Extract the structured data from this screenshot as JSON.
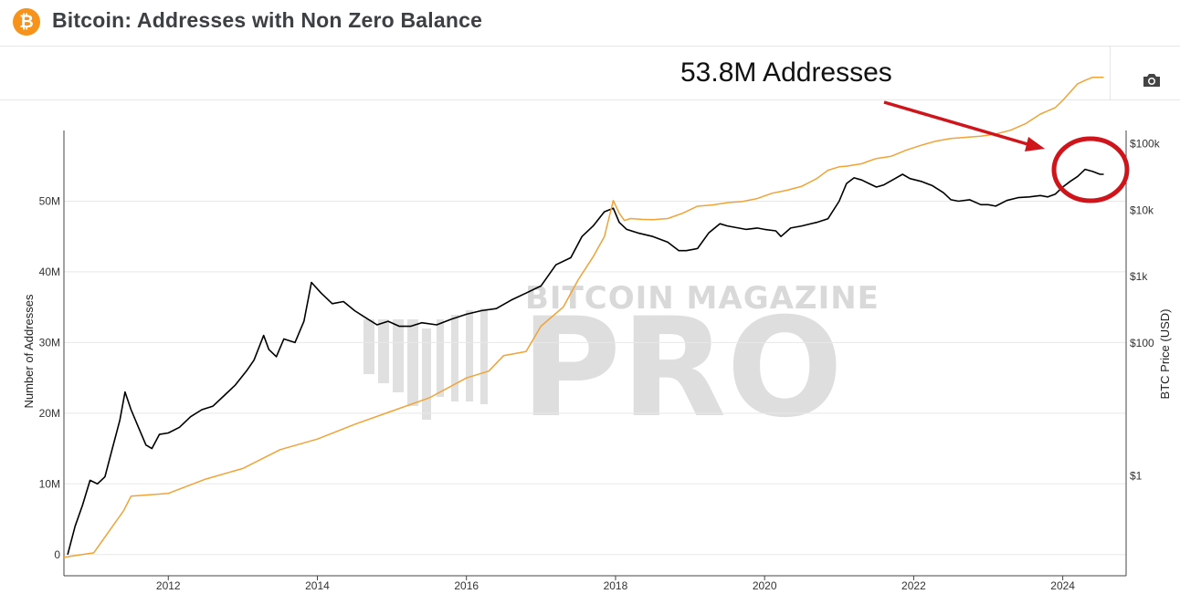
{
  "header": {
    "title": "Bitcoin: Addresses with Non Zero Balance",
    "logo_glyph": "₿",
    "logo_color": "#f7931a"
  },
  "toolbar": {
    "camera_icon": "camera-icon"
  },
  "annotation": {
    "text": "53.8M Addresses",
    "color": "#d0141b"
  },
  "watermark": {
    "line1": "BITCOIN MAGAZINE",
    "line2": "PRO"
  },
  "chart_data": {
    "type": "line",
    "title": "Bitcoin: Addresses with Non Zero Balance",
    "xlabel": "",
    "ylabel": "Number of Addresses",
    "y2label": "BTC Price (USD)",
    "xlim": [
      2010.6,
      2024.85
    ],
    "ylim": [
      -3000000,
      60000000
    ],
    "y2_scale": "log",
    "y2lim_log10": [
      -1.5,
      5.2
    ],
    "grid": true,
    "x_ticks": [
      "2012",
      "2014",
      "2016",
      "2018",
      "2020",
      "2022",
      "2024"
    ],
    "y_ticks": [
      "0",
      "10M",
      "20M",
      "30M",
      "40M",
      "50M"
    ],
    "y2_ticks": [
      "$1",
      "$100",
      "$1k",
      "$10k",
      "$100k"
    ],
    "series": [
      {
        "name": "",
        "color": "#000000",
        "axis": "left",
        "x": [
          2010.65,
          2010.75,
          2010.85,
          2010.95,
          2011.05,
          2011.15,
          2011.25,
          2011.35,
          2011.42,
          2011.5,
          2011.6,
          2011.7,
          2011.78,
          2011.88,
          2012.0,
          2012.15,
          2012.3,
          2012.45,
          2012.6,
          2012.75,
          2012.9,
          2013.05,
          2013.15,
          2013.28,
          2013.35,
          2013.45,
          2013.55,
          2013.7,
          2013.82,
          2013.92,
          2014.05,
          2014.2,
          2014.35,
          2014.5,
          2014.65,
          2014.8,
          2014.95,
          2015.1,
          2015.25,
          2015.4,
          2015.6,
          2015.8,
          2016.0,
          2016.2,
          2016.4,
          2016.6,
          2016.8,
          2017.0,
          2017.2,
          2017.4,
          2017.55,
          2017.7,
          2017.85,
          2017.97,
          2018.05,
          2018.15,
          2018.3,
          2018.5,
          2018.7,
          2018.85,
          2018.95,
          2019.1,
          2019.25,
          2019.4,
          2019.5,
          2019.6,
          2019.75,
          2019.9,
          2020.0,
          2020.15,
          2020.22,
          2020.35,
          2020.5,
          2020.7,
          2020.85,
          2021.0,
          2021.1,
          2021.2,
          2021.3,
          2021.4,
          2021.5,
          2021.6,
          2021.75,
          2021.85,
          2021.95,
          2022.1,
          2022.25,
          2022.4,
          2022.5,
          2022.6,
          2022.75,
          2022.9,
          2023.0,
          2023.1,
          2023.25,
          2023.4,
          2023.55,
          2023.7,
          2023.8,
          2023.9,
          2024.0,
          2024.1,
          2024.2,
          2024.3,
          2024.4,
          2024.5,
          2024.55
        ],
        "y": [
          0,
          4000000,
          7000000,
          10500000,
          10000000,
          11000000,
          15000000,
          19000000,
          23000000,
          20500000,
          18000000,
          15500000,
          15000000,
          17000000,
          17200000,
          18000000,
          19500000,
          20500000,
          21000000,
          22500000,
          24000000,
          26000000,
          27500000,
          31000000,
          29000000,
          28000000,
          30500000,
          30000000,
          33000000,
          38500000,
          37000000,
          35500000,
          35800000,
          34500000,
          33500000,
          32500000,
          33000000,
          32300000,
          32300000,
          32800000,
          32500000,
          33300000,
          34000000,
          34500000,
          34800000,
          36000000,
          37000000,
          38000000,
          41000000,
          42000000,
          45000000,
          46500000,
          48500000,
          49000000,
          47000000,
          46000000,
          45500000,
          45000000,
          44200000,
          43000000,
          43000000,
          43300000,
          45500000,
          46800000,
          46500000,
          46300000,
          46000000,
          46200000,
          46000000,
          45800000,
          45000000,
          46200000,
          46500000,
          47000000,
          47500000,
          50000000,
          52500000,
          53300000,
          53000000,
          52500000,
          52000000,
          52300000,
          53200000,
          53800000,
          53200000,
          52800000,
          52200000,
          51200000,
          50200000,
          50000000,
          50200000,
          49500000,
          49500000,
          49300000,
          50100000,
          50500000,
          50600000,
          50800000,
          50600000,
          51000000,
          52000000,
          52800000,
          53500000,
          54500000,
          54200000,
          53800000,
          53800000
        ]
      },
      {
        "name": "",
        "color": "#f0a336",
        "axis": "right",
        "x": [
          2010.6,
          2011.0,
          2011.4,
          2011.5,
          2012.0,
          2012.5,
          2013.0,
          2013.5,
          2014.0,
          2014.5,
          2015.0,
          2015.5,
          2016.0,
          2016.3,
          2016.5,
          2016.8,
          2017.0,
          2017.3,
          2017.5,
          2017.7,
          2017.85,
          2017.97,
          2018.05,
          2018.12,
          2018.2,
          2018.35,
          2018.5,
          2018.7,
          2018.9,
          2019.1,
          2019.3,
          2019.5,
          2019.7,
          2019.9,
          2020.1,
          2020.3,
          2020.5,
          2020.7,
          2020.85,
          2021.0,
          2021.1,
          2021.2,
          2021.3,
          2021.4,
          2021.5,
          2021.7,
          2021.9,
          2022.1,
          2022.3,
          2022.5,
          2022.7,
          2022.9,
          2023.1,
          2023.3,
          2023.5,
          2023.7,
          2023.9,
          2024.0,
          2024.1,
          2024.2,
          2024.3,
          2024.4,
          2024.55
        ],
        "y": [
          0.06,
          0.07,
          0.3,
          0.5,
          0.55,
          0.9,
          1.3,
          2.5,
          3.6,
          6,
          9.5,
          15,
          30,
          38,
          65,
          75,
          180,
          350,
          900,
          2000,
          4000,
          14000,
          9000,
          7000,
          7500,
          7300,
          7200,
          7500,
          9000,
          11500,
          12000,
          13000,
          13500,
          15000,
          18000,
          20000,
          23000,
          30000,
          40000,
          45000,
          46000,
          48000,
          50000,
          55000,
          60000,
          65000,
          80000,
          95000,
          110000,
          120000,
          125000,
          130000,
          140000,
          160000,
          200000,
          280000,
          350000,
          450000,
          600000,
          800000,
          900000,
          1000000,
          1000000
        ]
      }
    ]
  }
}
